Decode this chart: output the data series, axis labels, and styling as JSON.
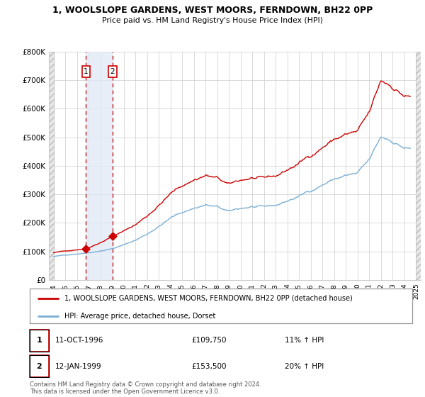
{
  "title": "1, WOOLSLOPE GARDENS, WEST MOORS, FERNDOWN, BH22 0PP",
  "subtitle": "Price paid vs. HM Land Registry's House Price Index (HPI)",
  "legend_line1": "1, WOOLSLOPE GARDENS, WEST MOORS, FERNDOWN, BH22 0PP (detached house)",
  "legend_line2": "HPI: Average price, detached house, Dorset",
  "table_rows": [
    {
      "num": "1",
      "date": "11-OCT-1996",
      "price": "£109,750",
      "change": "11% ↑ HPI"
    },
    {
      "num": "2",
      "date": "12-JAN-1999",
      "price": "£153,500",
      "change": "20% ↑ HPI"
    }
  ],
  "footnote": "Contains HM Land Registry data © Crown copyright and database right 2024.\nThis data is licensed under the Open Government Licence v3.0.",
  "sale1_date": 1996.78,
  "sale1_price": 109750,
  "sale2_date": 1999.04,
  "sale2_price": 153500,
  "red_line_color": "#cc0000",
  "blue_line_color": "#7bafd4",
  "shade_color": "#dde8f5",
  "hatch_color": "#e8e8e8",
  "grid_color": "#cccccc",
  "ylim": [
    0,
    800000
  ],
  "yticks": [
    0,
    100000,
    200000,
    300000,
    400000,
    500000,
    600000,
    700000,
    800000
  ],
  "ytick_labels": [
    "£0",
    "£100K",
    "£200K",
    "£300K",
    "£400K",
    "£500K",
    "£600K",
    "£700K",
    "£800K"
  ],
  "xlim_start": 1993.6,
  "xlim_end": 2025.4
}
